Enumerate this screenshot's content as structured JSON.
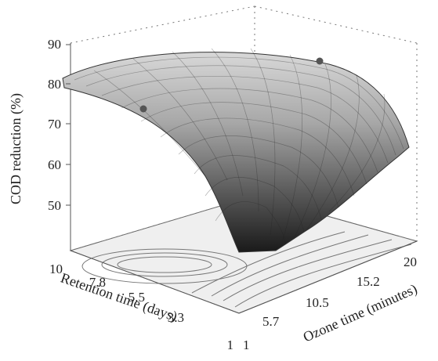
{
  "chart_data": {
    "type": "surface3d",
    "zlabel": "COD reduction (%)",
    "xlabel": "Ozone time (minutes)",
    "ylabel": "Retention time (days)",
    "z_ticks": [
      "90",
      "80",
      "70",
      "60",
      "50"
    ],
    "x_ticks": [
      "1",
      "5.7",
      "10.5",
      "15.2",
      "20"
    ],
    "y_ticks": [
      "1",
      "3.3",
      "5.5",
      "7.8",
      "10"
    ],
    "zlim": [
      40,
      90
    ],
    "xlim": [
      1,
      20
    ],
    "ylim": [
      1,
      10
    ],
    "surface_samples": [
      {
        "retention_days": 10,
        "ozone_min": 1,
        "cod_reduction": 80
      },
      {
        "retention_days": 10,
        "ozone_min": 10.5,
        "cod_reduction": 84
      },
      {
        "retention_days": 10,
        "ozone_min": 20,
        "cod_reduction": 84
      },
      {
        "retention_days": 5.5,
        "ozone_min": 10.5,
        "cod_reduction": 86
      },
      {
        "retention_days": 1,
        "ozone_min": 1,
        "cod_reduction": 40
      },
      {
        "retention_days": 1,
        "ozone_min": 20,
        "cod_reduction": 62
      }
    ],
    "observed_points": [
      {
        "retention_days": 7.8,
        "ozone_min": 1,
        "cod_reduction": 76
      },
      {
        "retention_days": 10,
        "ozone_min": 20,
        "cod_reduction": 88
      }
    ]
  }
}
